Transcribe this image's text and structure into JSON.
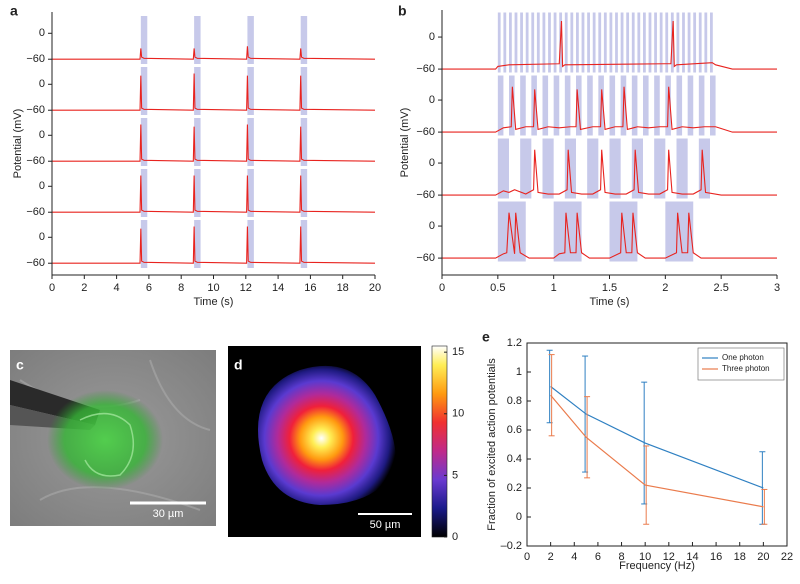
{
  "chart_data": [
    {
      "type": "trace",
      "label": "a",
      "ylabel": "Potential (mV)",
      "xlabel": "Time (s)",
      "xlim": [
        0,
        20
      ],
      "xticks": [
        0,
        2,
        4,
        6,
        8,
        10,
        12,
        14,
        16,
        18,
        20
      ],
      "ylim": [
        -78,
        40
      ],
      "yticks": [
        0,
        {
          "value": -60,
          "label": "−60"
        }
      ],
      "color": "#e8231f",
      "stimulus_color": "#c7c9ea",
      "pulses": [
        5.5,
        8.8,
        12.1,
        15.4
      ],
      "pulse_width": 0.4,
      "x": [
        0,
        5.45,
        5.5,
        5.55,
        5.7,
        8.75,
        8.8,
        8.85,
        9.0,
        12.05,
        12.1,
        12.15,
        12.3,
        15.35,
        15.4,
        15.45,
        15.6,
        20
      ],
      "series": [
        {
          "values": [
            -60,
            -60,
            -35,
            -55,
            -58,
            -60,
            -35,
            -55,
            -58,
            -60,
            -30,
            -55,
            -58,
            -60,
            -35,
            -55,
            -58,
            -60
          ]
        },
        {
          "values": [
            -60,
            -60,
            20,
            -55,
            -58,
            -60,
            25,
            -55,
            -58,
            -60,
            20,
            -55,
            -58,
            -60,
            20,
            -55,
            -58,
            -60
          ]
        },
        {
          "values": [
            -60,
            -60,
            25,
            -55,
            -58,
            -60,
            20,
            -55,
            -58,
            -60,
            25,
            -55,
            -58,
            -60,
            20,
            -55,
            -58,
            -60
          ]
        },
        {
          "values": [
            -60,
            -60,
            25,
            -55,
            -58,
            -60,
            25,
            -55,
            -58,
            -60,
            25,
            -55,
            -58,
            -60,
            25,
            -55,
            -58,
            -60
          ]
        },
        {
          "values": [
            -60,
            -60,
            20,
            -55,
            -58,
            -60,
            25,
            -55,
            -58,
            -60,
            25,
            -55,
            -58,
            -60,
            25,
            -55,
            -58,
            -60
          ]
        }
      ]
    },
    {
      "type": "trace",
      "label": "b",
      "ylabel": "Potential (mV)",
      "xlabel": "Time (s)",
      "xlim": [
        0,
        3
      ],
      "xticks": [
        0,
        0.5,
        1,
        1.5,
        2,
        2.5,
        3
      ],
      "ylim": [
        -72,
        46
      ],
      "yticks": [
        0,
        {
          "value": -60,
          "label": "−60"
        }
      ],
      "color": "#e8231f",
      "stimulus_color": "#c7c9ea",
      "series": [
        {
          "stimulus": {
            "start": 0.5,
            "stop": 2.45,
            "frequency": 20,
            "width": 0.025
          },
          "x": [
            0,
            0.48,
            0.5,
            0.6,
            1.05,
            1.07,
            1.08,
            1.1,
            2.0,
            2.05,
            2.07,
            2.08,
            2.1,
            2.42,
            2.45,
            2.6,
            3
          ],
          "values": [
            -60,
            -60,
            -55,
            -52,
            -50,
            30,
            -55,
            -52,
            -50,
            -50,
            30,
            -55,
            -52,
            -48,
            -52,
            -60,
            -60
          ]
        },
        {
          "stimulus": {
            "start": 0.5,
            "stop": 2.45,
            "frequency": 10,
            "width": 0.05
          },
          "x": [
            0,
            0.48,
            0.55,
            0.62,
            0.63,
            0.66,
            0.75,
            0.82,
            0.83,
            0.86,
            0.95,
            1.05,
            1.15,
            1.2,
            1.21,
            1.24,
            1.35,
            1.42,
            1.43,
            1.46,
            1.55,
            1.62,
            1.63,
            1.66,
            1.75,
            1.85,
            1.95,
            2.02,
            2.03,
            2.06,
            2.15,
            2.25,
            2.35,
            2.45,
            2.6,
            3
          ],
          "values": [
            -60,
            -60,
            -52,
            -50,
            25,
            -55,
            -50,
            -50,
            20,
            -55,
            -50,
            -52,
            -50,
            -50,
            20,
            -55,
            -50,
            -50,
            20,
            -55,
            -50,
            -50,
            25,
            -55,
            -50,
            -52,
            -50,
            -50,
            25,
            -55,
            -50,
            -52,
            -50,
            -50,
            -60,
            -60
          ]
        },
        {
          "stimulus": {
            "start": 0.5,
            "stop": 2.45,
            "frequency": 5,
            "width": 0.1
          },
          "x": [
            0,
            0.48,
            0.55,
            0.6,
            0.65,
            0.75,
            0.82,
            0.83,
            0.86,
            0.95,
            1.05,
            1.12,
            1.13,
            1.16,
            1.25,
            1.35,
            1.42,
            1.43,
            1.46,
            1.55,
            1.65,
            1.72,
            1.73,
            1.76,
            1.85,
            1.95,
            2.02,
            2.03,
            2.06,
            2.15,
            2.25,
            2.32,
            2.33,
            2.36,
            2.5,
            3
          ],
          "values": [
            -60,
            -60,
            -52,
            -55,
            -50,
            -58,
            -50,
            25,
            -55,
            -58,
            -58,
            -50,
            25,
            -55,
            -58,
            -58,
            -50,
            25,
            -55,
            -58,
            -58,
            -50,
            25,
            -55,
            -58,
            -58,
            -50,
            25,
            -55,
            -58,
            -58,
            -50,
            25,
            -55,
            -60,
            -60
          ]
        },
        {
          "stimulus": {
            "start": 0.5,
            "stop": 2.45,
            "frequency": 2,
            "width": 0.25
          },
          "x": [
            0,
            0.48,
            0.55,
            0.58,
            0.6,
            0.65,
            0.66,
            0.7,
            0.78,
            1.0,
            1.05,
            1.1,
            1.11,
            1.15,
            1.2,
            1.21,
            1.25,
            1.32,
            1.5,
            1.6,
            1.61,
            1.65,
            1.7,
            1.71,
            1.75,
            1.82,
            2.0,
            2.1,
            2.11,
            2.15,
            2.2,
            2.21,
            2.25,
            2.32,
            2.5,
            3
          ],
          "values": [
            -60,
            -60,
            -52,
            -50,
            25,
            -52,
            25,
            -50,
            -60,
            -60,
            -52,
            -50,
            25,
            -50,
            -50,
            25,
            -50,
            -60,
            -60,
            -50,
            25,
            -50,
            -50,
            25,
            -50,
            -60,
            -60,
            -50,
            25,
            -50,
            -50,
            25,
            -50,
            -60,
            -60,
            -60
          ]
        }
      ]
    },
    {
      "type": "image",
      "label": "c",
      "scale_bar": "30 µm"
    },
    {
      "type": "image",
      "label": "d",
      "scale_bar": "50 µm",
      "colorbar": {
        "lim": [
          0,
          15.5
        ],
        "ticks": [
          0,
          5,
          10,
          15
        ]
      }
    },
    {
      "type": "line",
      "label": "e",
      "xlabel": "Frequency (Hz)",
      "ylabel": "Fraction of excited action potentials",
      "xlim": [
        0,
        22
      ],
      "xticks": [
        0,
        2,
        4,
        6,
        8,
        10,
        12,
        14,
        16,
        18,
        20,
        22
      ],
      "ylim": [
        -0.2,
        1.2
      ],
      "yticks": [
        {
          "value": -0.2,
          "label": "–0.2"
        },
        0,
        0.2,
        0.4,
        0.6,
        0.8,
        1,
        1.2
      ],
      "x": [
        2,
        5,
        10,
        20
      ],
      "legend": "upper right",
      "series": [
        {
          "name": "One photon",
          "color": "#2f80c2",
          "values": [
            0.9,
            0.71,
            0.51,
            0.2
          ],
          "errors": [
            0.25,
            0.4,
            0.42,
            0.25
          ]
        },
        {
          "name": "Three photon",
          "color": "#ea7b4c",
          "values": [
            0.84,
            0.55,
            0.22,
            0.07
          ],
          "errors": [
            0.28,
            0.28,
            0.27,
            0.12
          ]
        }
      ]
    }
  ]
}
